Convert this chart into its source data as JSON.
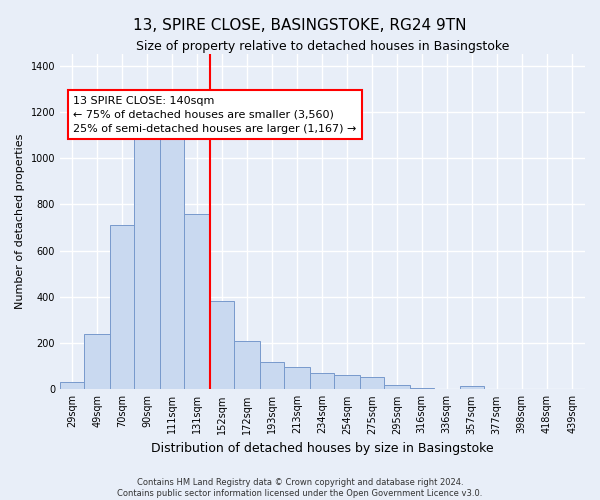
{
  "title": "13, SPIRE CLOSE, BASINGSTOKE, RG24 9TN",
  "subtitle": "Size of property relative to detached houses in Basingstoke",
  "xlabel": "Distribution of detached houses by size in Basingstoke",
  "ylabel": "Number of detached properties",
  "footer_line1": "Contains HM Land Registry data © Crown copyright and database right 2024.",
  "footer_line2": "Contains public sector information licensed under the Open Government Licence v3.0.",
  "bin_labels": [
    "29sqm",
    "49sqm",
    "70sqm",
    "90sqm",
    "111sqm",
    "131sqm",
    "152sqm",
    "172sqm",
    "193sqm",
    "213sqm",
    "234sqm",
    "254sqm",
    "275sqm",
    "295sqm",
    "316sqm",
    "336sqm",
    "357sqm",
    "377sqm",
    "398sqm",
    "418sqm",
    "439sqm"
  ],
  "bar_heights": [
    30,
    240,
    710,
    1110,
    1110,
    760,
    380,
    210,
    120,
    95,
    70,
    60,
    55,
    20,
    5,
    0,
    15,
    0,
    0,
    0,
    0
  ],
  "bar_color": "#c9d9f0",
  "bar_edge_color": "#7799cc",
  "vline_color": "red",
  "annotation_text": "13 SPIRE CLOSE: 140sqm\n← 75% of detached houses are smaller (3,560)\n25% of semi-detached houses are larger (1,167) →",
  "annotation_box_color": "white",
  "annotation_box_edge": "red",
  "ylim": [
    0,
    1450
  ],
  "yticks": [
    0,
    200,
    400,
    600,
    800,
    1000,
    1200,
    1400
  ],
  "background_color": "#e8eef8",
  "plot_bg_color": "#e8eef8",
  "grid_color": "white",
  "title_fontsize": 11,
  "subtitle_fontsize": 9,
  "ylabel_fontsize": 8,
  "xlabel_fontsize": 9,
  "tick_fontsize": 7,
  "footer_fontsize": 6,
  "annotation_fontsize": 8
}
